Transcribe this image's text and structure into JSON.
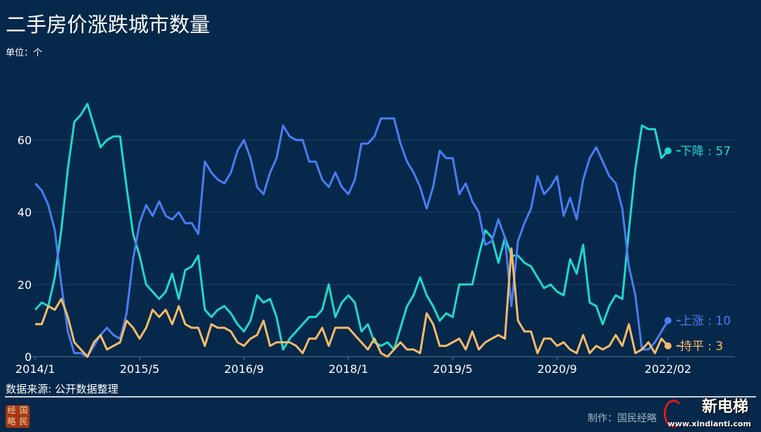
{
  "title": "二手房价涨跌城市数量",
  "unit": "单位：个",
  "source": "数据来源: 公开数据整理",
  "seal_text": [
    "经",
    "国",
    "略",
    "民"
  ],
  "brand": {
    "name": "新电梯",
    "url": "www.xindianti.com",
    "maker": "制作：国民经略"
  },
  "chart_data": {
    "type": "line",
    "title": "二手房价涨跌城市数量",
    "ylim": [
      0,
      70
    ],
    "y_ticks": [
      0,
      20,
      40,
      60
    ],
    "grid": true,
    "x_tick_labels": [
      "2014/1",
      "2015/5",
      "2016/9",
      "2018/1",
      "2019/5",
      "2020/9",
      "2022/02"
    ],
    "categories": [
      "2014/1",
      "2014/2",
      "2014/3",
      "2014/4",
      "2014/5",
      "2014/6",
      "2014/7",
      "2014/8",
      "2014/9",
      "2014/10",
      "2014/11",
      "2014/12",
      "2015/1",
      "2015/2",
      "2015/3",
      "2015/4",
      "2015/5",
      "2015/6",
      "2015/7",
      "2015/8",
      "2015/9",
      "2015/10",
      "2015/11",
      "2015/12",
      "2016/1",
      "2016/2",
      "2016/3",
      "2016/4",
      "2016/5",
      "2016/6",
      "2016/7",
      "2016/8",
      "2016/9",
      "2016/10",
      "2016/11",
      "2016/12",
      "2017/1",
      "2017/2",
      "2017/3",
      "2017/4",
      "2017/5",
      "2017/6",
      "2017/7",
      "2017/8",
      "2017/9",
      "2017/10",
      "2017/11",
      "2017/12",
      "2018/1",
      "2018/2",
      "2018/3",
      "2018/4",
      "2018/5",
      "2018/6",
      "2018/7",
      "2018/8",
      "2018/9",
      "2018/10",
      "2018/11",
      "2018/12",
      "2019/1",
      "2019/2",
      "2019/3",
      "2019/4",
      "2019/5",
      "2019/6",
      "2019/7",
      "2019/8",
      "2019/9",
      "2019/10",
      "2019/11",
      "2019/12",
      "2020/1",
      "2020/2",
      "2020/3",
      "2020/4",
      "2020/5",
      "2020/6",
      "2020/7",
      "2020/8",
      "2020/9",
      "2020/10",
      "2020/11",
      "2020/12",
      "2021/1",
      "2021/2",
      "2021/3",
      "2021/4",
      "2021/5",
      "2021/6",
      "2021/7",
      "2021/8",
      "2021/9",
      "2021/10",
      "2021/11",
      "2021/12",
      "2022/01",
      "2022/02"
    ],
    "series": [
      {
        "name": "下降",
        "end_label": "下降 : 57",
        "color": "#1fd8d0",
        "values": [
          13,
          15,
          14,
          22,
          35,
          52,
          65,
          67,
          70,
          64,
          58,
          60,
          61,
          61,
          47,
          34,
          28,
          20,
          18,
          16,
          18,
          23,
          16,
          24,
          25,
          28,
          13,
          11,
          13,
          14,
          12,
          9,
          7,
          10,
          17,
          15,
          16,
          11,
          2,
          5,
          7,
          9,
          11,
          11,
          13,
          20,
          11,
          15,
          17,
          15,
          7,
          9,
          4,
          3,
          4,
          2,
          8,
          14,
          17,
          22,
          17,
          14,
          10,
          12,
          11,
          20,
          20,
          20,
          28,
          35,
          33,
          26,
          33,
          28,
          28,
          26,
          25,
          22,
          19,
          20,
          18,
          17,
          27,
          23,
          31,
          15,
          14,
          9,
          14,
          17,
          16,
          35,
          52,
          64,
          63,
          63,
          55,
          57
        ]
      },
      {
        "name": "上涨",
        "end_label": "上涨 : 10",
        "color": "#4a7cf5",
        "values": [
          48,
          46,
          42,
          35,
          20,
          7,
          1,
          1,
          0,
          3,
          6,
          8,
          6,
          5,
          12,
          27,
          37,
          42,
          39,
          43,
          39,
          38,
          40,
          37,
          37,
          34,
          54,
          51,
          49,
          48,
          51,
          57,
          60,
          55,
          47,
          45,
          51,
          55,
          64,
          61,
          60,
          60,
          54,
          54,
          49,
          47,
          51,
          47,
          45,
          49,
          59,
          59,
          61,
          66,
          66,
          66,
          59,
          54,
          51,
          47,
          41,
          47,
          57,
          55,
          55,
          45,
          48,
          43,
          40,
          31,
          32,
          38,
          33,
          14,
          32,
          37,
          41,
          50,
          45,
          47,
          50,
          39,
          44,
          38,
          49,
          55,
          58,
          54,
          50,
          48,
          41,
          25,
          17,
          2,
          2,
          4,
          7,
          10
        ]
      },
      {
        "name": "持平",
        "end_label": "持平 : 3",
        "color": "#f8bb6a",
        "values": [
          9,
          9,
          14,
          13,
          16,
          11,
          4,
          2,
          0,
          4,
          6,
          2,
          3,
          4,
          10,
          8,
          5,
          8,
          13,
          11,
          13,
          9,
          14,
          9,
          8,
          8,
          3,
          9,
          8,
          8,
          7,
          4,
          3,
          5,
          6,
          10,
          3,
          4,
          4,
          4,
          3,
          1,
          5,
          5,
          8,
          3,
          8,
          8,
          8,
          6,
          4,
          2,
          5,
          1,
          0,
          2,
          4,
          2,
          2,
          1,
          12,
          9,
          3,
          3,
          4,
          5,
          2,
          7,
          2,
          4,
          5,
          6,
          5,
          30,
          10,
          7,
          7,
          1,
          5,
          5,
          3,
          4,
          2,
          1,
          6,
          1,
          3,
          2,
          3,
          6,
          3,
          9,
          1,
          2,
          4,
          1,
          5,
          3
        ]
      }
    ]
  }
}
